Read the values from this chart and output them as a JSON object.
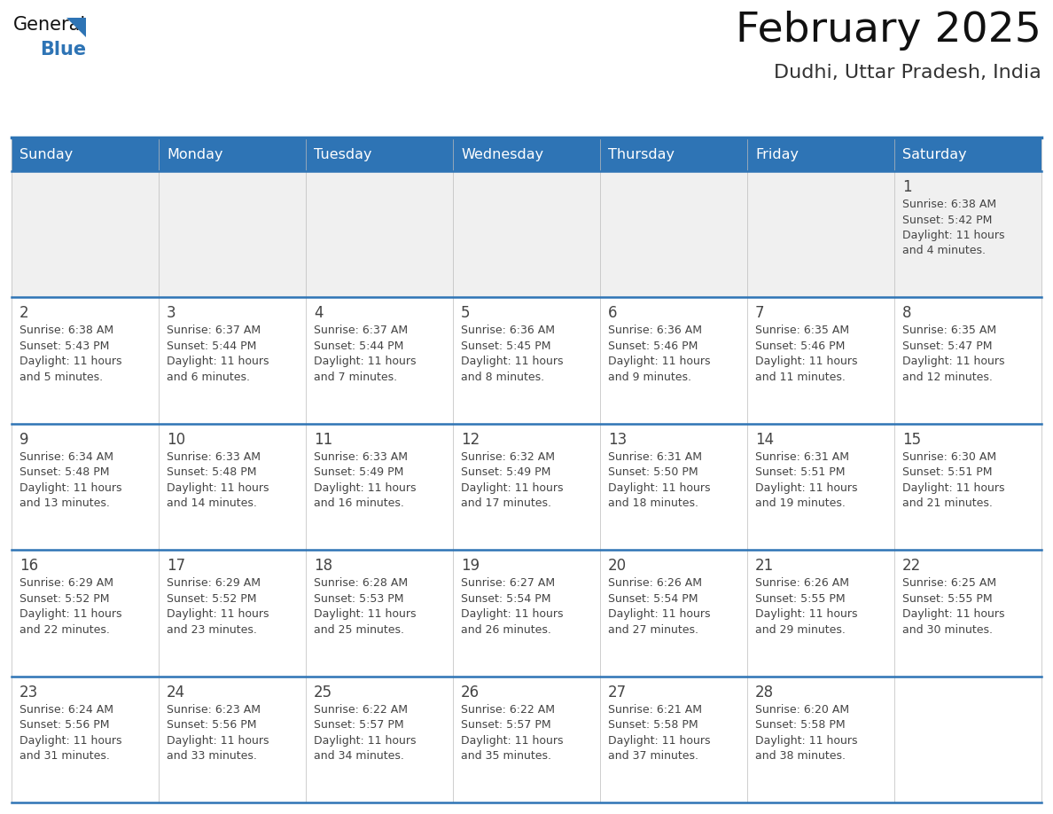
{
  "title": "February 2025",
  "subtitle": "Dudhi, Uttar Pradesh, India",
  "days_of_week": [
    "Sunday",
    "Monday",
    "Tuesday",
    "Wednesday",
    "Thursday",
    "Friday",
    "Saturday"
  ],
  "header_bg": "#2E74B5",
  "header_text_color": "#FFFFFF",
  "cell_bg_white": "#FFFFFF",
  "cell_bg_gray": "#F0F0F0",
  "divider_color": "#2E74B5",
  "text_color": "#444444",
  "day_num_color": "#444444",
  "logo_triangle_color": "#2E74B5",
  "calendar": [
    [
      null,
      null,
      null,
      null,
      null,
      null,
      {
        "day": 1,
        "sunrise": "6:38 AM",
        "sunset": "5:42 PM",
        "daylight": "11 hours and 4 minutes."
      }
    ],
    [
      {
        "day": 2,
        "sunrise": "6:38 AM",
        "sunset": "5:43 PM",
        "daylight": "11 hours and 5 minutes."
      },
      {
        "day": 3,
        "sunrise": "6:37 AM",
        "sunset": "5:44 PM",
        "daylight": "11 hours and 6 minutes."
      },
      {
        "day": 4,
        "sunrise": "6:37 AM",
        "sunset": "5:44 PM",
        "daylight": "11 hours and 7 minutes."
      },
      {
        "day": 5,
        "sunrise": "6:36 AM",
        "sunset": "5:45 PM",
        "daylight": "11 hours and 8 minutes."
      },
      {
        "day": 6,
        "sunrise": "6:36 AM",
        "sunset": "5:46 PM",
        "daylight": "11 hours and 9 minutes."
      },
      {
        "day": 7,
        "sunrise": "6:35 AM",
        "sunset": "5:46 PM",
        "daylight": "11 hours and 11 minutes."
      },
      {
        "day": 8,
        "sunrise": "6:35 AM",
        "sunset": "5:47 PM",
        "daylight": "11 hours and 12 minutes."
      }
    ],
    [
      {
        "day": 9,
        "sunrise": "6:34 AM",
        "sunset": "5:48 PM",
        "daylight": "11 hours and 13 minutes."
      },
      {
        "day": 10,
        "sunrise": "6:33 AM",
        "sunset": "5:48 PM",
        "daylight": "11 hours and 14 minutes."
      },
      {
        "day": 11,
        "sunrise": "6:33 AM",
        "sunset": "5:49 PM",
        "daylight": "11 hours and 16 minutes."
      },
      {
        "day": 12,
        "sunrise": "6:32 AM",
        "sunset": "5:49 PM",
        "daylight": "11 hours and 17 minutes."
      },
      {
        "day": 13,
        "sunrise": "6:31 AM",
        "sunset": "5:50 PM",
        "daylight": "11 hours and 18 minutes."
      },
      {
        "day": 14,
        "sunrise": "6:31 AM",
        "sunset": "5:51 PM",
        "daylight": "11 hours and 19 minutes."
      },
      {
        "day": 15,
        "sunrise": "6:30 AM",
        "sunset": "5:51 PM",
        "daylight": "11 hours and 21 minutes."
      }
    ],
    [
      {
        "day": 16,
        "sunrise": "6:29 AM",
        "sunset": "5:52 PM",
        "daylight": "11 hours and 22 minutes."
      },
      {
        "day": 17,
        "sunrise": "6:29 AM",
        "sunset": "5:52 PM",
        "daylight": "11 hours and 23 minutes."
      },
      {
        "day": 18,
        "sunrise": "6:28 AM",
        "sunset": "5:53 PM",
        "daylight": "11 hours and 25 minutes."
      },
      {
        "day": 19,
        "sunrise": "6:27 AM",
        "sunset": "5:54 PM",
        "daylight": "11 hours and 26 minutes."
      },
      {
        "day": 20,
        "sunrise": "6:26 AM",
        "sunset": "5:54 PM",
        "daylight": "11 hours and 27 minutes."
      },
      {
        "day": 21,
        "sunrise": "6:26 AM",
        "sunset": "5:55 PM",
        "daylight": "11 hours and 29 minutes."
      },
      {
        "day": 22,
        "sunrise": "6:25 AM",
        "sunset": "5:55 PM",
        "daylight": "11 hours and 30 minutes."
      }
    ],
    [
      {
        "day": 23,
        "sunrise": "6:24 AM",
        "sunset": "5:56 PM",
        "daylight": "11 hours and 31 minutes."
      },
      {
        "day": 24,
        "sunrise": "6:23 AM",
        "sunset": "5:56 PM",
        "daylight": "11 hours and 33 minutes."
      },
      {
        "day": 25,
        "sunrise": "6:22 AM",
        "sunset": "5:57 PM",
        "daylight": "11 hours and 34 minutes."
      },
      {
        "day": 26,
        "sunrise": "6:22 AM",
        "sunset": "5:57 PM",
        "daylight": "11 hours and 35 minutes."
      },
      {
        "day": 27,
        "sunrise": "6:21 AM",
        "sunset": "5:58 PM",
        "daylight": "11 hours and 37 minutes."
      },
      {
        "day": 28,
        "sunrise": "6:20 AM",
        "sunset": "5:58 PM",
        "daylight": "11 hours and 38 minutes."
      },
      null
    ]
  ]
}
